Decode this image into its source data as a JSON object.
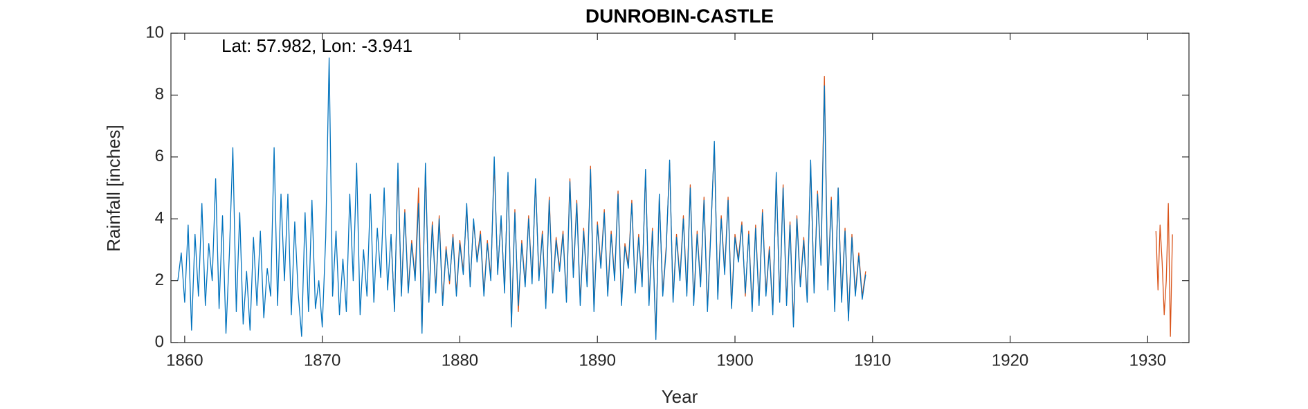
{
  "chart_data": {
    "type": "line",
    "title": "DUNROBIN-CASTLE",
    "annotation": "Lat: 57.982, Lon: -3.941",
    "x_label": "Year",
    "y_label": "Rainfall [inches]",
    "xlim": [
      1859,
      1933
    ],
    "xticks": [
      1860,
      1870,
      1880,
      1890,
      1900,
      1910,
      1920,
      1930
    ],
    "ylim": [
      0,
      10
    ],
    "yticks": [
      0,
      2,
      4,
      6,
      8,
      10
    ],
    "x": [
      1859.5,
      1859.75,
      1860,
      1860.25,
      1860.5,
      1860.75,
      1861,
      1861.25,
      1861.5,
      1861.75,
      1862,
      1862.25,
      1862.5,
      1862.75,
      1863,
      1863.25,
      1863.5,
      1863.75,
      1864,
      1864.25,
      1864.5,
      1864.75,
      1865,
      1865.25,
      1865.5,
      1865.75,
      1866,
      1866.25,
      1866.5,
      1866.75,
      1867,
      1867.25,
      1867.5,
      1867.75,
      1868,
      1868.25,
      1868.5,
      1868.75,
      1869,
      1869.25,
      1869.5,
      1869.75,
      1870,
      1870.25,
      1870.5,
      1870.75,
      1871,
      1871.25,
      1871.5,
      1871.75,
      1872,
      1872.25,
      1872.5,
      1872.75,
      1873,
      1873.25,
      1873.5,
      1873.75,
      1874,
      1874.25,
      1874.5,
      1874.75,
      1875,
      1875.25,
      1875.5,
      1875.75,
      1876,
      1876.25,
      1876.5,
      1876.75,
      1877,
      1877.25,
      1877.5,
      1877.75,
      1878,
      1878.25,
      1878.5,
      1878.75,
      1879,
      1879.25,
      1879.5,
      1879.75,
      1880,
      1880.25,
      1880.5,
      1880.75,
      1881,
      1881.25,
      1881.5,
      1881.75,
      1882,
      1882.25,
      1882.5,
      1882.75,
      1883,
      1883.25,
      1883.5,
      1883.75,
      1884,
      1884.25,
      1884.5,
      1884.75,
      1885,
      1885.25,
      1885.5,
      1885.75,
      1886,
      1886.25,
      1886.5,
      1886.75,
      1887,
      1887.25,
      1887.5,
      1887.75,
      1888,
      1888.25,
      1888.5,
      1888.75,
      1889,
      1889.25,
      1889.5,
      1889.75,
      1890,
      1890.25,
      1890.5,
      1890.75,
      1891,
      1891.25,
      1891.5,
      1891.75,
      1892,
      1892.25,
      1892.5,
      1892.75,
      1893,
      1893.25,
      1893.5,
      1893.75,
      1894,
      1894.25,
      1894.5,
      1894.75,
      1895,
      1895.25,
      1895.5,
      1895.75,
      1896,
      1896.25,
      1896.5,
      1896.75,
      1897,
      1897.25,
      1897.5,
      1897.75,
      1898,
      1898.25,
      1898.5,
      1898.75,
      1899,
      1899.25,
      1899.5,
      1899.75,
      1900,
      1900.25,
      1900.5,
      1900.75,
      1901,
      1901.25,
      1901.5,
      1901.75,
      1902,
      1902.25,
      1902.5,
      1902.75,
      1903,
      1903.25,
      1903.5,
      1903.75,
      1904,
      1904.25,
      1904.5,
      1904.75,
      1905,
      1905.25,
      1905.5,
      1905.75,
      1906,
      1906.25,
      1906.5,
      1906.75,
      1907,
      1907.25,
      1907.5,
      1907.75,
      1908,
      1908.25,
      1908.5,
      1908.75,
      1909,
      1909.25,
      1909.5
    ],
    "series": [
      {
        "color": "#D95319",
        "values": [
          null,
          null,
          null,
          null,
          null,
          null,
          null,
          null,
          null,
          null,
          null,
          null,
          null,
          null,
          null,
          null,
          null,
          null,
          null,
          null,
          null,
          null,
          null,
          null,
          null,
          null,
          null,
          null,
          null,
          null,
          null,
          null,
          null,
          null,
          null,
          null,
          null,
          null,
          null,
          null,
          null,
          null,
          null,
          null,
          null,
          null,
          null,
          null,
          null,
          null,
          null,
          null,
          null,
          null,
          null,
          null,
          null,
          null,
          null,
          null,
          null,
          null,
          3.4,
          1.1,
          5.6,
          1.6,
          4.3,
          1.7,
          3.3,
          2.1,
          5.0,
          0.4,
          5.6,
          1.4,
          3.9,
          1.7,
          4.1,
          1.3,
          3.1,
          1.9,
          3.5,
          1.6,
          3.3,
          2.3,
          4.4,
          1.9,
          3.9,
          2.7,
          3.6,
          1.6,
          3.3,
          2.1,
          5.8,
          2.3,
          4.0,
          1.7,
          5.4,
          0.6,
          4.3,
          1.0,
          3.3,
          1.9,
          4.1,
          2.0,
          5.2,
          2.1,
          3.6,
          1.2,
          4.7,
          1.7,
          3.4,
          2.4,
          3.6,
          1.4,
          5.3,
          2.2,
          4.6,
          1.3,
          3.7,
          1.9,
          5.7,
          1.1,
          3.9,
          2.5,
          4.3,
          1.6,
          3.6,
          2.1,
          4.9,
          1.3,
          3.2,
          2.5,
          4.6,
          1.7,
          3.5,
          1.9,
          5.5,
          1.3,
          3.7,
          0.2,
          4.7,
          1.6,
          3.1,
          5.8,
          1.4,
          3.5,
          2.1,
          4.1,
          1.6,
          5.1,
          1.3,
          3.6,
          1.9,
          4.7,
          1.1,
          3.7,
          6.4,
          1.5,
          4.1,
          2.3,
          4.7,
          1.2,
          3.5,
          2.7,
          3.9,
          1.5,
          3.6,
          1.1,
          3.8,
          1.3,
          4.3,
          1.6,
          3.1,
          1.0,
          5.4,
          1.4,
          5.1,
          1.3,
          3.9,
          0.6,
          4.1,
          1.9,
          3.4,
          1.4,
          5.8,
          1.7,
          4.9,
          2.6,
          8.6,
          1.8,
          4.7,
          1.1,
          5.0,
          1.4,
          3.7,
          0.8,
          3.5,
          1.6,
          2.9,
          1.5,
          2.3
        ]
      },
      {
        "color": "#D95319",
        "x": [
          1930.6,
          1930.75,
          1930.9,
          1931.05,
          1931.2,
          1931.35,
          1931.5,
          1931.65,
          1931.8
        ],
        "values": [
          3.6,
          1.7,
          3.8,
          2.6,
          0.9,
          2.0,
          4.5,
          0.2,
          3.5
        ]
      },
      {
        "color": "#0072BD",
        "values": [
          2.0,
          2.9,
          1.3,
          3.8,
          0.4,
          3.5,
          1.5,
          4.5,
          1.2,
          3.2,
          2.0,
          5.3,
          1.1,
          4.1,
          0.3,
          2.9,
          6.3,
          1.0,
          4.2,
          0.6,
          2.3,
          0.4,
          3.4,
          1.2,
          3.6,
          0.8,
          2.4,
          1.5,
          6.3,
          1.2,
          4.8,
          2.0,
          4.8,
          0.9,
          3.9,
          1.6,
          0.2,
          4.2,
          1.0,
          4.6,
          1.1,
          2.0,
          0.5,
          3.4,
          9.2,
          1.5,
          3.6,
          0.9,
          2.7,
          1.0,
          4.8,
          2.0,
          5.8,
          0.9,
          3.0,
          1.5,
          4.8,
          1.3,
          3.7,
          2.1,
          5.0,
          1.7,
          3.5,
          1.0,
          5.8,
          1.5,
          4.2,
          1.6,
          3.2,
          2.0,
          4.5,
          0.3,
          5.8,
          1.3,
          3.8,
          1.6,
          4.0,
          1.2,
          3.0,
          2.0,
          3.4,
          1.5,
          3.2,
          2.2,
          4.5,
          1.8,
          4.0,
          2.6,
          3.5,
          1.5,
          3.2,
          2.0,
          6.0,
          2.2,
          4.1,
          1.6,
          5.5,
          0.5,
          4.2,
          1.2,
          3.2,
          1.8,
          4.0,
          1.9,
          5.3,
          2.0,
          3.5,
          1.1,
          4.6,
          1.6,
          3.3,
          2.3,
          3.5,
          1.3,
          5.2,
          2.1,
          4.5,
          1.2,
          3.6,
          1.8,
          5.6,
          1.0,
          3.8,
          2.4,
          4.2,
          1.5,
          3.5,
          2.0,
          4.8,
          1.2,
          3.1,
          2.4,
          4.5,
          1.6,
          3.4,
          1.8,
          5.6,
          1.2,
          3.6,
          0.1,
          4.8,
          1.5,
          3.0,
          5.9,
          1.3,
          3.4,
          2.0,
          4.0,
          1.5,
          5.0,
          1.2,
          3.5,
          1.8,
          4.6,
          1.0,
          3.6,
          6.5,
          1.4,
          4.0,
          2.2,
          4.6,
          1.1,
          3.4,
          2.6,
          3.8,
          1.6,
          3.5,
          1.0,
          3.7,
          1.2,
          4.2,
          1.5,
          3.0,
          0.9,
          5.5,
          1.3,
          5.0,
          1.2,
          3.8,
          0.5,
          4.0,
          1.8,
          3.3,
          1.3,
          5.9,
          1.6,
          4.8,
          2.5,
          8.3,
          1.7,
          4.6,
          1.0,
          5.0,
          1.3,
          3.6,
          0.7,
          3.4,
          1.5,
          2.8,
          1.4,
          2.2
        ]
      }
    ]
  }
}
